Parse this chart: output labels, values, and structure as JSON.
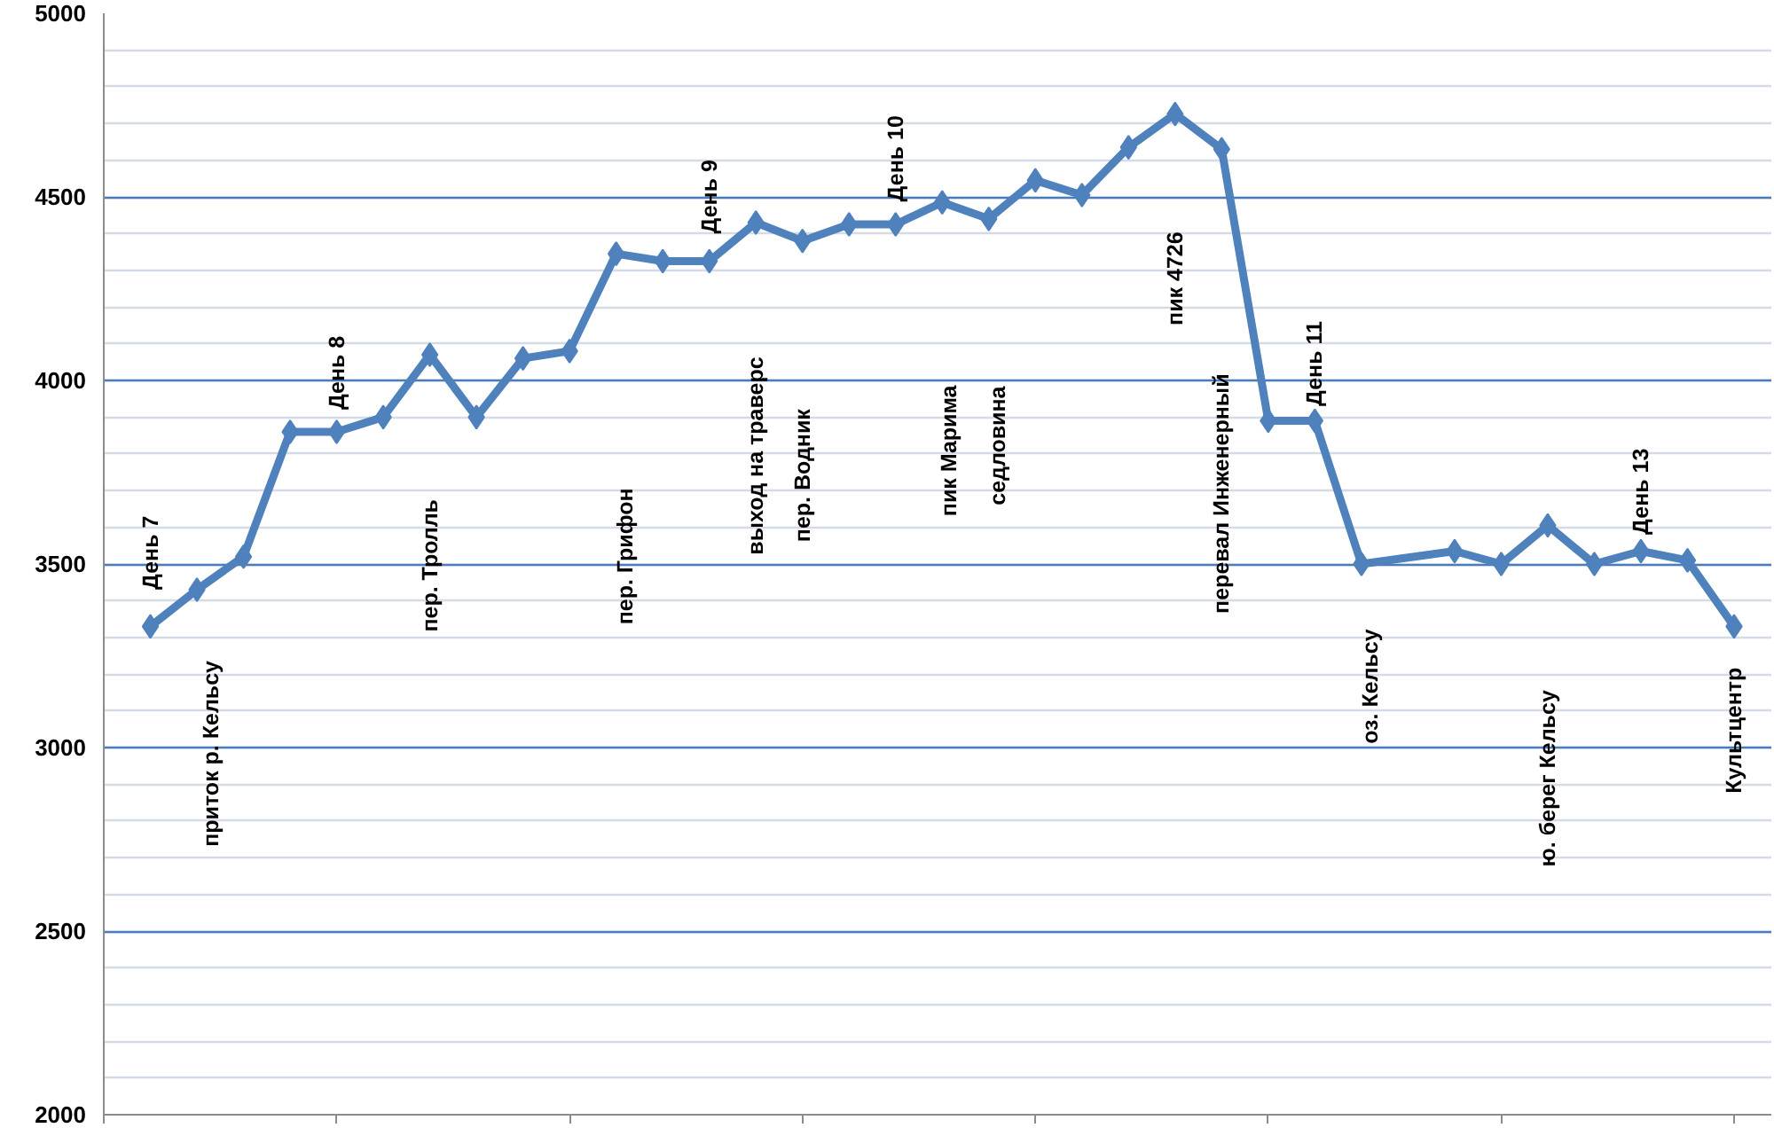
{
  "chart_data": {
    "type": "line",
    "categories": [
      null,
      null,
      null,
      null,
      null,
      null,
      null,
      null,
      null,
      null,
      null,
      null,
      null,
      null,
      null,
      null,
      null,
      null,
      null,
      null,
      null,
      null,
      null,
      null,
      null,
      null,
      null,
      null,
      null,
      null,
      null,
      null,
      null,
      null,
      null
    ],
    "series": [
      {
        "color": "#4f81bd",
        "values": [
          3330,
          3430,
          3520,
          3860,
          3860,
          3900,
          4070,
          3900,
          4060,
          4080,
          4345,
          4325,
          4325,
          4430,
          4380,
          4425,
          4425,
          4485,
          4440,
          4545,
          4505,
          4635,
          4726,
          4630,
          3890,
          3890,
          3500,
          null,
          3535,
          3500,
          3605,
          3500,
          3535,
          3510,
          3330
        ]
      }
    ],
    "ylim": [
      2000,
      5000
    ],
    "yticks": [
      2000,
      2500,
      3000,
      3500,
      4000,
      4500,
      5000
    ],
    "grid": "y",
    "marker": "diamond",
    "line_style": "solid",
    "annotations": [
      "День 7",
      "приток р. Кельсу",
      "День 8",
      "пер. Тролль",
      "пер. Грифон",
      "День 9",
      "выход на траверс",
      "пер. Водник",
      "День 10",
      "пик Марима",
      "седловина",
      "пик 4726",
      "перевал Инженерный",
      "День 11",
      "оз. Кельсу",
      "ю. берег Кельсу",
      "День 13",
      "Культцентр"
    ]
  }
}
